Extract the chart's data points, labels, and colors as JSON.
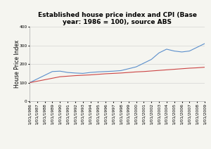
{
  "title": "Established house price index and CPI (Base\nyear: 1986 = 100), source ABS",
  "ylabel": "House Price Index",
  "xlabels": [
    "1/01/1986",
    "1/01/1987",
    "1/01/1988",
    "1/01/1989",
    "1/01/1990",
    "1/01/1991",
    "1/01/1992",
    "1/01/1993",
    "1/01/1994",
    "1/01/1995",
    "1/01/1996",
    "1/01/1997",
    "1/01/1998",
    "1/01/1999",
    "1/01/2000",
    "1/01/2001",
    "1/01/2002",
    "1/01/2003",
    "1/01/2004",
    "1/01/2005",
    "1/01/2006",
    "1/01/2007",
    "1/01/2008",
    "1/01/2009"
  ],
  "house_price": [
    100,
    120,
    140,
    160,
    162,
    155,
    152,
    150,
    155,
    158,
    160,
    162,
    165,
    175,
    185,
    205,
    225,
    260,
    280,
    270,
    265,
    270,
    290,
    310
  ],
  "cpi": [
    100,
    108,
    116,
    124,
    132,
    135,
    138,
    140,
    142,
    145,
    148,
    150,
    152,
    155,
    158,
    160,
    163,
    166,
    169,
    172,
    175,
    178,
    180,
    183
  ],
  "ylim": [
    0,
    400
  ],
  "yticks": [
    0,
    100,
    200,
    300,
    400
  ],
  "house_color": "#5b8fcc",
  "cpi_color": "#cc4444",
  "bg_color": "#f5f5f0",
  "plot_bg": "#f5f5f0",
  "title_fontsize": 6.5,
  "label_fontsize": 5.5,
  "tick_fontsize": 4.2,
  "ylabel_fontsize": 5.5
}
